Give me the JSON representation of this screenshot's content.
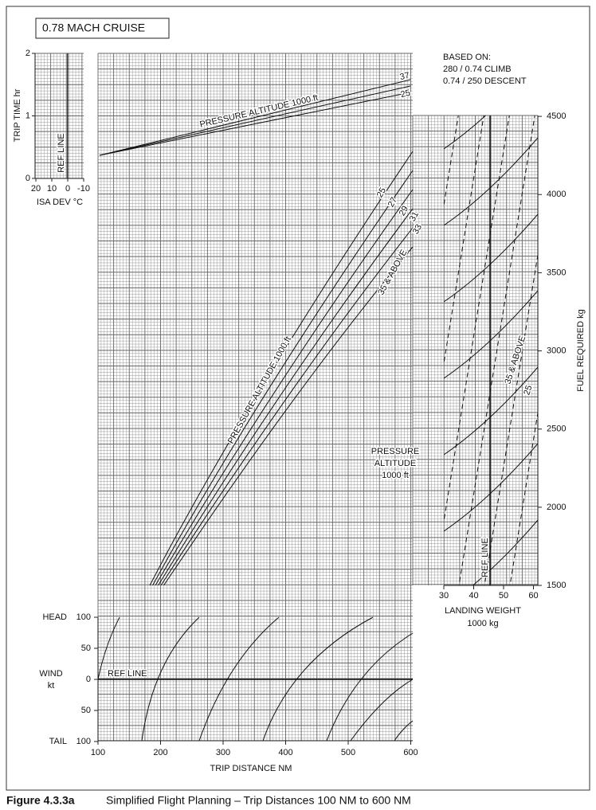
{
  "title": "0.78 MACH CRUISE",
  "based_on": [
    "BASED ON:",
    "280 / 0.74 CLIMB",
    "0.74 / 250 DESCENT"
  ],
  "trip_time": {
    "label": "TRIP TIME  hr",
    "ticks": [
      0,
      1,
      2
    ]
  },
  "isa_dev": {
    "label": "ISA DEV °C",
    "ticks": [
      20,
      10,
      0,
      -10
    ]
  },
  "ref_lines": [
    "REF LINE",
    "REF LINE",
    "REF LINE"
  ],
  "time_panel": {
    "label": "PRESSURE ALTITUDE  1000 ft",
    "curve_labels": [
      "37",
      "25"
    ]
  },
  "distance_panel": {
    "label": "PRESSURE ALTITUDE  1000 ft",
    "curve_labels": [
      "25",
      "27",
      "29",
      "31",
      "33",
      "35 & ABOVE"
    ]
  },
  "fuel_panel": {
    "label": [
      "PRESSURE",
      "ALTITUDE",
      "1000 ft"
    ],
    "curve_labels": [
      "35 & ABOVE",
      "25"
    ]
  },
  "fuel_required": {
    "label": "FUEL REQUIRED  kg",
    "ticks": [
      1500,
      2000,
      2500,
      3000,
      3500,
      4000,
      4500
    ]
  },
  "landing_weight": {
    "label": [
      "LANDING WEIGHT",
      "1000 kg"
    ],
    "ticks": [
      30,
      40,
      50,
      60
    ]
  },
  "wind": {
    "label": [
      "WIND",
      "kt"
    ],
    "head": "HEAD",
    "tail": "TAIL",
    "ticks": [
      100,
      50,
      0,
      {
        "value": -50,
        "label": "50"
      },
      {
        "value": -100,
        "label": "100"
      }
    ]
  },
  "trip_distance": {
    "label": "TRIP DISTANCE  NM",
    "ticks": [
      100,
      200,
      300,
      400,
      500,
      600
    ]
  },
  "caption": {
    "figure": "Figure 4.3.3a",
    "text": "Simplified Flight Planning – Trip Distances 100 NM to 600 NM"
  }
}
